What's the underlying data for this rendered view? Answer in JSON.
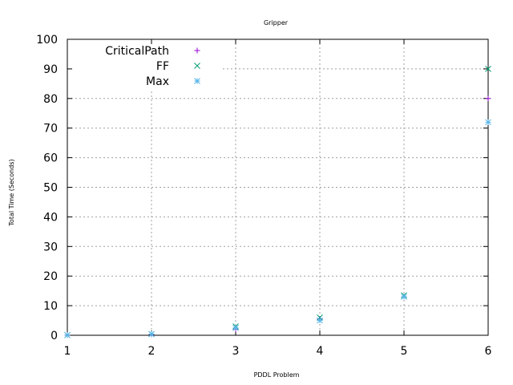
{
  "chart_data": {
    "type": "scatter",
    "title": "Gripper",
    "xlabel": "PDDL Problem",
    "ylabel": "Total Time (Seconds)",
    "xlim": [
      1,
      6
    ],
    "ylim": [
      0,
      100
    ],
    "xticks": [
      "1",
      "2",
      "3",
      "4",
      "5",
      "6"
    ],
    "yticks": [
      "0",
      "10",
      "20",
      "30",
      "40",
      "50",
      "60",
      "70",
      "80",
      "90",
      "100"
    ],
    "grid": true,
    "legend_position": "top-left",
    "series": [
      {
        "name": "CriticalPath",
        "marker": "plus",
        "color": "#9400d3",
        "points": [
          [
            1,
            0.05
          ],
          [
            2,
            0.3
          ],
          [
            3,
            2.0
          ],
          [
            4,
            5.5
          ],
          [
            5,
            13.0
          ],
          [
            6,
            80.0
          ]
        ]
      },
      {
        "name": "FF",
        "marker": "cross",
        "color": "#009e73",
        "points": [
          [
            1,
            0.05
          ],
          [
            2,
            0.4
          ],
          [
            3,
            3.0
          ],
          [
            4,
            6.0
          ],
          [
            5,
            13.5
          ],
          [
            6,
            90.0
          ]
        ]
      },
      {
        "name": "Max",
        "marker": "star",
        "color": "#56b4e9",
        "points": [
          [
            1,
            0.05
          ],
          [
            2,
            0.4
          ],
          [
            3,
            2.5
          ],
          [
            4,
            5.0
          ],
          [
            5,
            13.0
          ],
          [
            6,
            72.0
          ]
        ]
      }
    ]
  }
}
